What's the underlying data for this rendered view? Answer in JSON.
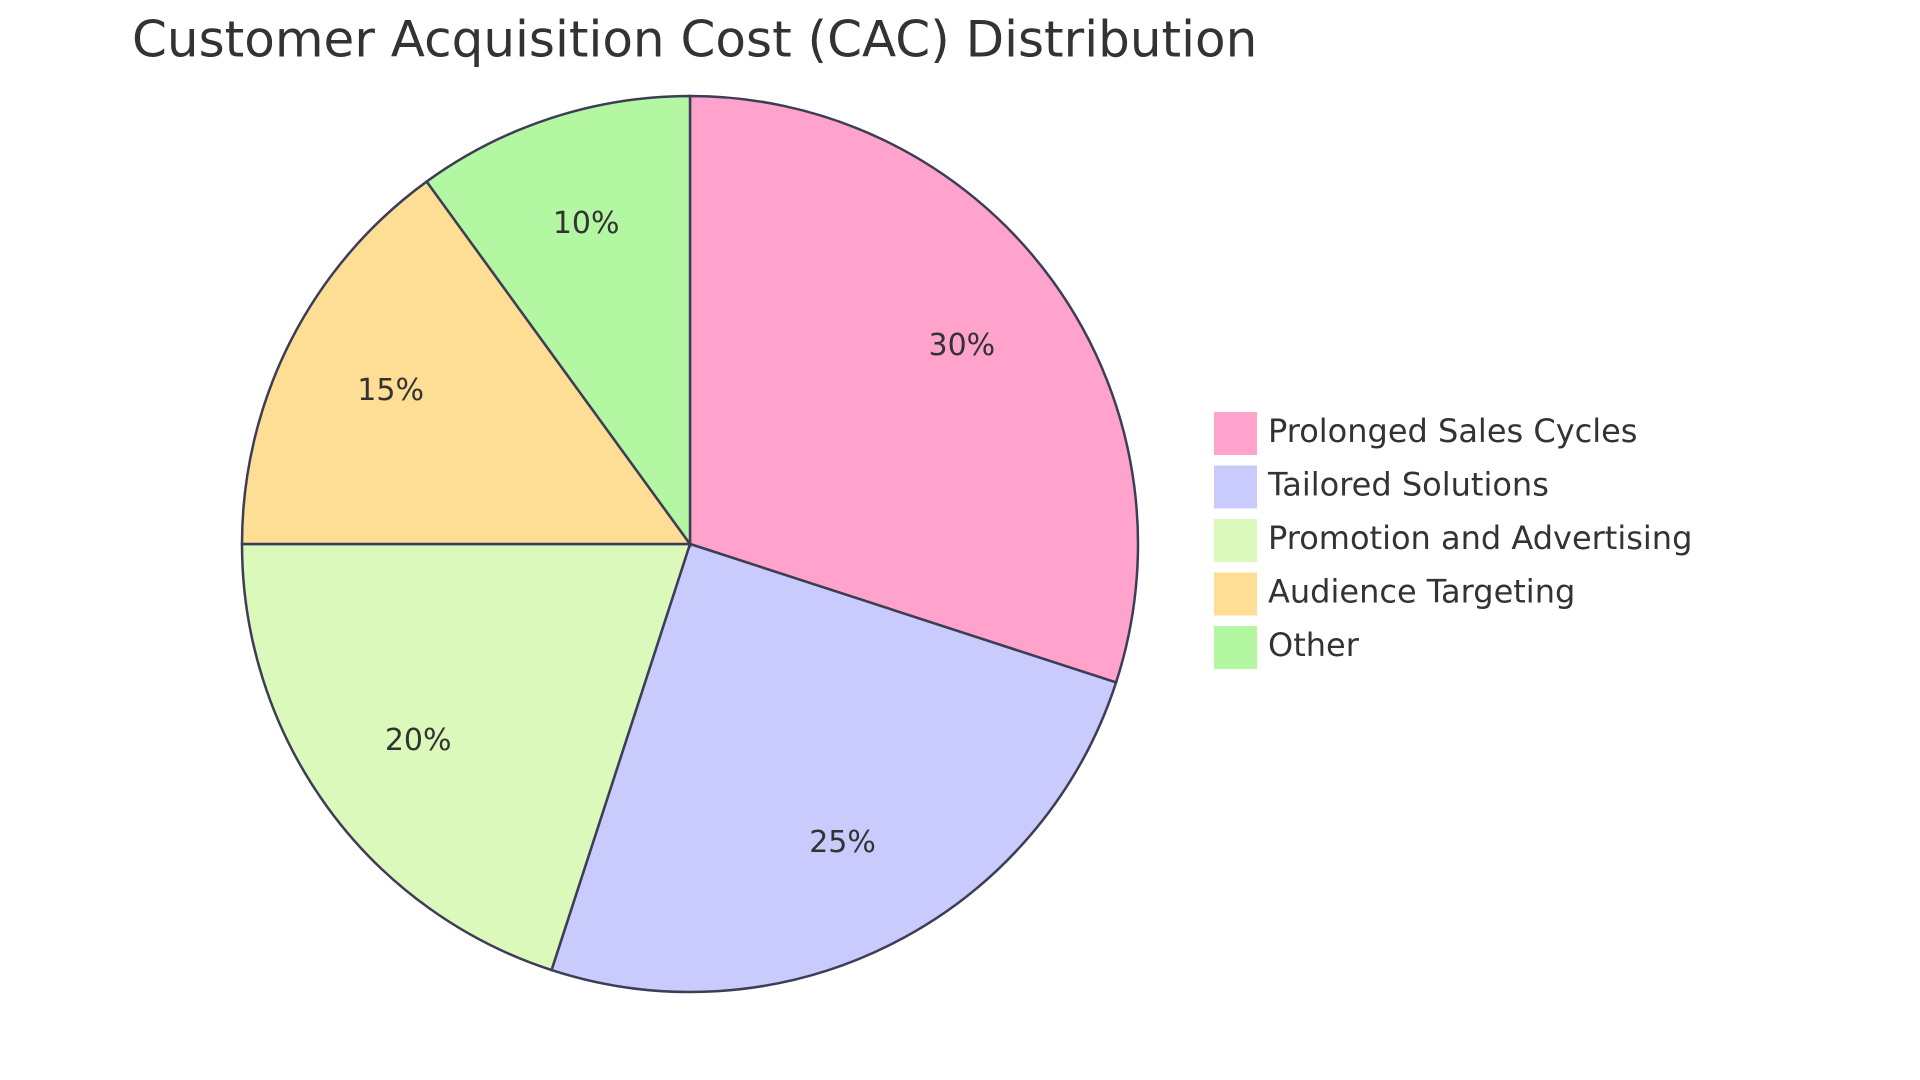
{
  "chart_data": {
    "type": "pie",
    "title": "Customer Acquisition Cost (CAC) Distribution",
    "categories": [
      "Prolonged Sales Cycles",
      "Tailored Solutions",
      "Promotion and Advertising",
      "Audience Targeting",
      "Other"
    ],
    "values": [
      30,
      25,
      20,
      15,
      10
    ],
    "value_labels": [
      "30%",
      "25%",
      "20%",
      "15%",
      "10%"
    ],
    "colors": [
      "#ffa3cd",
      "#cacbfd",
      "#daf9ba",
      "#fedd95",
      "#b3f7a2"
    ]
  }
}
